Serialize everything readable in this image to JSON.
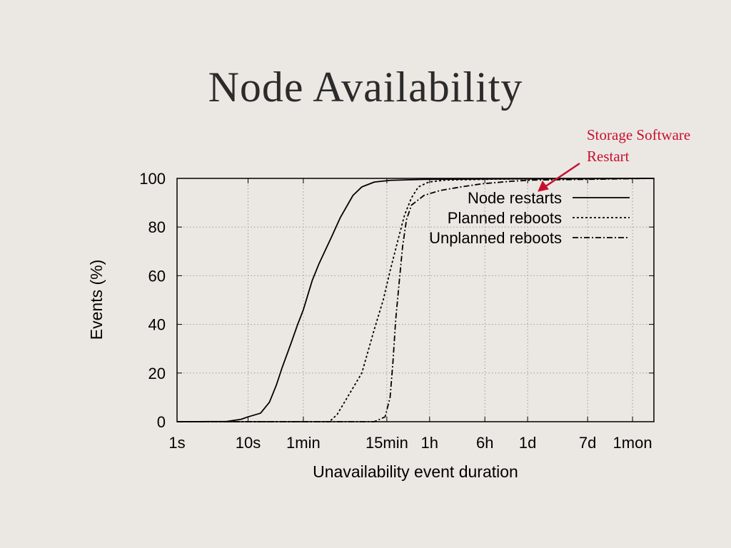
{
  "slide": {
    "title": "Node Availability",
    "annotation_line1": "Storage Software",
    "annotation_line2": "Restart",
    "annotation_color": "#c8102e"
  },
  "chart_data": {
    "type": "line",
    "title": "",
    "xlabel": "Unavailability event duration",
    "ylabel": "Events (%)",
    "x_scale": "log",
    "x_unit": "seconds",
    "xlim": [
      1,
      5184000
    ],
    "ylim": [
      0,
      100
    ],
    "grid": true,
    "legend_position": "top-right",
    "x_ticks": [
      {
        "label": "1s",
        "value": 1
      },
      {
        "label": "10s",
        "value": 10
      },
      {
        "label": "1min",
        "value": 60
      },
      {
        "label": "15min",
        "value": 900
      },
      {
        "label": "1h",
        "value": 3600
      },
      {
        "label": "6h",
        "value": 21600
      },
      {
        "label": "1d",
        "value": 86400
      },
      {
        "label": "7d",
        "value": 604800
      },
      {
        "label": "1mon",
        "value": 2592000
      }
    ],
    "y_ticks": [
      0,
      20,
      40,
      60,
      80,
      100
    ],
    "series": [
      {
        "name": "Node restarts",
        "style": "solid",
        "points": [
          [
            1,
            0
          ],
          [
            5,
            0.1
          ],
          [
            8,
            1
          ],
          [
            10,
            2
          ],
          [
            15,
            3.5
          ],
          [
            20,
            8
          ],
          [
            25,
            15
          ],
          [
            30,
            22
          ],
          [
            40,
            32
          ],
          [
            50,
            40
          ],
          [
            60,
            46
          ],
          [
            80,
            58
          ],
          [
            100,
            65
          ],
          [
            150,
            76
          ],
          [
            200,
            84
          ],
          [
            300,
            93
          ],
          [
            400,
            96.5
          ],
          [
            600,
            98.5
          ],
          [
            1000,
            99.2
          ],
          [
            3000,
            99.6
          ],
          [
            30000,
            99.8
          ],
          [
            5184000,
            100
          ]
        ]
      },
      {
        "name": "Planned reboots",
        "style": "dotted",
        "points": [
          [
            1,
            0
          ],
          [
            140,
            0
          ],
          [
            180,
            3
          ],
          [
            250,
            10
          ],
          [
            400,
            20
          ],
          [
            600,
            38
          ],
          [
            800,
            50
          ],
          [
            1000,
            62
          ],
          [
            1300,
            75
          ],
          [
            1600,
            85
          ],
          [
            2000,
            92
          ],
          [
            2500,
            96.5
          ],
          [
            3500,
            98.5
          ],
          [
            6000,
            99.3
          ],
          [
            30000,
            99.7
          ],
          [
            5184000,
            100
          ]
        ]
      },
      {
        "name": "Unplanned reboots",
        "style": "dashdot",
        "points": [
          [
            1,
            0
          ],
          [
            600,
            0
          ],
          [
            850,
            2
          ],
          [
            1000,
            10
          ],
          [
            1100,
            25
          ],
          [
            1200,
            42
          ],
          [
            1350,
            58
          ],
          [
            1500,
            72
          ],
          [
            1700,
            83
          ],
          [
            2000,
            89
          ],
          [
            3000,
            93
          ],
          [
            5000,
            95
          ],
          [
            10000,
            96.5
          ],
          [
            20000,
            97.8
          ],
          [
            50000,
            98.8
          ],
          [
            100000,
            99.3
          ],
          [
            5184000,
            100
          ]
        ]
      }
    ]
  }
}
